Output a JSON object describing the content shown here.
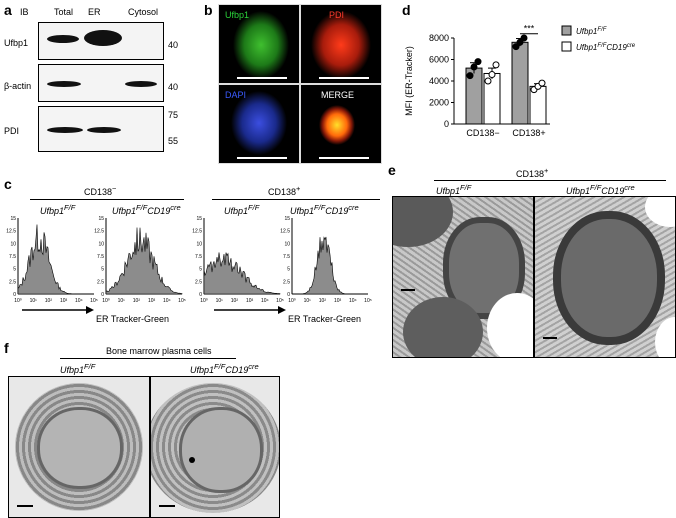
{
  "panels": {
    "a": "a",
    "b": "b",
    "c": "c",
    "d": "d",
    "e": "e",
    "f": "f"
  },
  "panel_a": {
    "ib_label": "IB",
    "columns": [
      "Total",
      "ER",
      "Cytosol"
    ],
    "rows": [
      {
        "name": "Ufbp1",
        "markers": [
          "40"
        ]
      },
      {
        "name": "β-actin",
        "markers": [
          "40"
        ]
      },
      {
        "name": "PDI",
        "markers": [
          "75",
          "55"
        ]
      }
    ]
  },
  "panel_b": {
    "labels": [
      "Ufbp1",
      "PDI",
      "DAPI",
      "MERGE"
    ],
    "label_colors": [
      "#2bd43a",
      "#ff3b2b",
      "#3b5bff",
      "#ffffff"
    ]
  },
  "panel_c": {
    "groups": [
      {
        "title": "CD138",
        "sup": "−",
        "left": "Ufbp1",
        "left_sup": "F/F",
        "right": "Ufbp1",
        "right_sup": "F/F",
        "right_tail": "CD19",
        "right_tail_sup": "cre"
      },
      {
        "title": "CD138",
        "sup": "+",
        "left": "Ufbp1",
        "left_sup": "F/F",
        "right": "Ufbp1",
        "right_sup": "F/F",
        "right_tail": "CD19",
        "right_tail_sup": "cre"
      }
    ],
    "y_ticks": [
      "15",
      "12.5",
      "10",
      "7.5",
      "5",
      "2.5",
      "0"
    ],
    "x_ticks": [
      "10⁰",
      "10¹",
      "10²",
      "10³",
      "10⁴",
      "10⁵"
    ],
    "xlabel": "ER Tracker-Green"
  },
  "chart_data": {
    "type": "bar",
    "categories": [
      "CD138−",
      "CD138+"
    ],
    "ylabel": "MFI (ER-Tracker)",
    "ylim": [
      0,
      8000
    ],
    "yticks": [
      0,
      2000,
      4000,
      6000,
      8000
    ],
    "series": [
      {
        "name": "Ufbp1 F/F",
        "color": "#a0a0a0",
        "values": [
          5200,
          7600
        ],
        "error": [
          500,
          350
        ],
        "points": [
          [
            4500,
            5300,
            5800
          ],
          [
            7200,
            7600,
            8000
          ]
        ]
      },
      {
        "name": "Ufbp1 F/F CD19cre",
        "color": "#ffffff",
        "values": [
          4700,
          3500
        ],
        "error": [
          500,
          250
        ],
        "points": [
          [
            4000,
            4600,
            5500
          ],
          [
            3200,
            3500,
            3800
          ]
        ]
      }
    ],
    "annotation": "***",
    "legend": [
      {
        "label": "Ufbp1",
        "sup": "F/F"
      },
      {
        "label": "Ufbp1",
        "sup": "F/F",
        "tail": "CD19",
        "tail_sup": "cre"
      }
    ]
  },
  "panel_e": {
    "title": "CD138",
    "title_sup": "+",
    "left": "Ufbp1",
    "left_sup": "F/F",
    "right": "Ufbp1",
    "right_sup": "F/F",
    "right_tail": "CD19",
    "right_tail_sup": "cre"
  },
  "panel_f": {
    "title": "Bone marrow plasma cells",
    "left": "Ufbp1",
    "left_sup": "F/F",
    "right": "Ufbp1",
    "right_sup": "F/F",
    "right_tail": "CD19",
    "right_tail_sup": "cre"
  }
}
